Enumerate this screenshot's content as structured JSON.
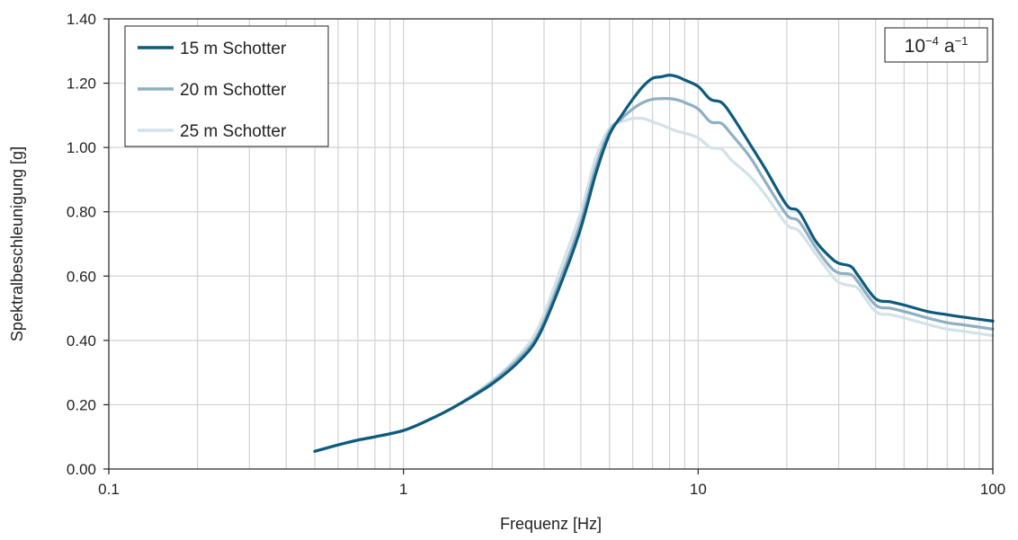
{
  "chart_data": {
    "type": "line",
    "xscale": "log",
    "xlim": [
      0.1,
      100
    ],
    "ylim": [
      0,
      1.4
    ],
    "xlabel": "Frequenz [Hz]",
    "ylabel": "Spektralbeschleunigung [g]",
    "xticks": [
      0.1,
      1,
      10,
      100
    ],
    "xtick_labels": [
      "0.1",
      "1",
      "10",
      "100"
    ],
    "yticks": [
      0,
      0.2,
      0.4,
      0.6,
      0.8,
      1.0,
      1.2,
      1.4
    ],
    "ytick_labels": [
      "0.00",
      "0.20",
      "0.40",
      "0.60",
      "0.80",
      "1.00",
      "1.20",
      "1.40"
    ],
    "grid": true,
    "legend_position": "top-left",
    "annotation": {
      "base": "10",
      "base_exp": "−4",
      "unit": "a",
      "unit_exp": "−1",
      "position": "top-right"
    },
    "series": [
      {
        "name": "15 m Schotter",
        "color": "#0d5a7e",
        "x": [
          0.5,
          0.6,
          0.7,
          0.8,
          1.0,
          1.2,
          1.5,
          2.0,
          2.5,
          2.9,
          3.5,
          4.0,
          4.5,
          5.0,
          5.5,
          6.0,
          6.5,
          7.0,
          7.5,
          8.0,
          8.5,
          9.0,
          10.0,
          11.0,
          12.0,
          13.0,
          15.0,
          17.0,
          20.0,
          22.0,
          25.0,
          28.0,
          30.0,
          33.0,
          35.0,
          40.0,
          45.0,
          50.0,
          60.0,
          70.0,
          80.0,
          100.0
        ],
        "y": [
          0.055,
          0.075,
          0.09,
          0.1,
          0.12,
          0.15,
          0.195,
          0.265,
          0.34,
          0.42,
          0.6,
          0.75,
          0.92,
          1.04,
          1.1,
          1.15,
          1.19,
          1.215,
          1.22,
          1.225,
          1.22,
          1.21,
          1.19,
          1.15,
          1.14,
          1.1,
          1.01,
          0.93,
          0.82,
          0.8,
          0.71,
          0.66,
          0.64,
          0.63,
          0.6,
          0.53,
          0.52,
          0.51,
          0.49,
          0.48,
          0.472,
          0.46
        ]
      },
      {
        "name": "20 m Schotter",
        "color": "#8fb0c2",
        "x": [
          0.5,
          0.6,
          0.7,
          0.8,
          1.0,
          1.2,
          1.5,
          2.0,
          2.5,
          2.9,
          3.5,
          4.0,
          4.5,
          5.0,
          5.5,
          6.0,
          6.5,
          7.0,
          7.5,
          8.0,
          8.5,
          9.0,
          10.0,
          11.0,
          12.0,
          13.0,
          15.0,
          17.0,
          20.0,
          22.0,
          25.0,
          28.0,
          30.0,
          33.0,
          35.0,
          40.0,
          45.0,
          50.0,
          60.0,
          70.0,
          80.0,
          100.0
        ],
        "y": [
          0.055,
          0.075,
          0.09,
          0.1,
          0.12,
          0.15,
          0.195,
          0.27,
          0.35,
          0.43,
          0.62,
          0.77,
          0.94,
          1.05,
          1.09,
          1.12,
          1.14,
          1.15,
          1.152,
          1.152,
          1.148,
          1.14,
          1.12,
          1.08,
          1.075,
          1.04,
          0.97,
          0.89,
          0.79,
          0.77,
          0.69,
          0.63,
          0.61,
          0.605,
          0.58,
          0.51,
          0.5,
          0.49,
          0.47,
          0.455,
          0.448,
          0.435
        ]
      },
      {
        "name": "25 m Schotter",
        "color": "#d3e2e8",
        "x": [
          0.5,
          0.6,
          0.7,
          0.8,
          1.0,
          1.2,
          1.5,
          2.0,
          2.5,
          2.9,
          3.5,
          4.0,
          4.5,
          5.0,
          5.5,
          6.0,
          6.5,
          7.0,
          7.5,
          8.0,
          8.5,
          9.0,
          10.0,
          11.0,
          12.0,
          13.0,
          15.0,
          17.0,
          20.0,
          22.0,
          25.0,
          28.0,
          30.0,
          33.0,
          35.0,
          40.0,
          45.0,
          50.0,
          60.0,
          70.0,
          80.0,
          100.0
        ],
        "y": [
          0.055,
          0.075,
          0.09,
          0.1,
          0.12,
          0.15,
          0.195,
          0.275,
          0.36,
          0.45,
          0.65,
          0.8,
          0.97,
          1.06,
          1.08,
          1.09,
          1.09,
          1.08,
          1.07,
          1.06,
          1.05,
          1.045,
          1.03,
          1.0,
          0.995,
          0.96,
          0.91,
          0.85,
          0.76,
          0.74,
          0.67,
          0.61,
          0.58,
          0.57,
          0.56,
          0.49,
          0.48,
          0.47,
          0.45,
          0.435,
          0.428,
          0.415
        ]
      }
    ]
  }
}
